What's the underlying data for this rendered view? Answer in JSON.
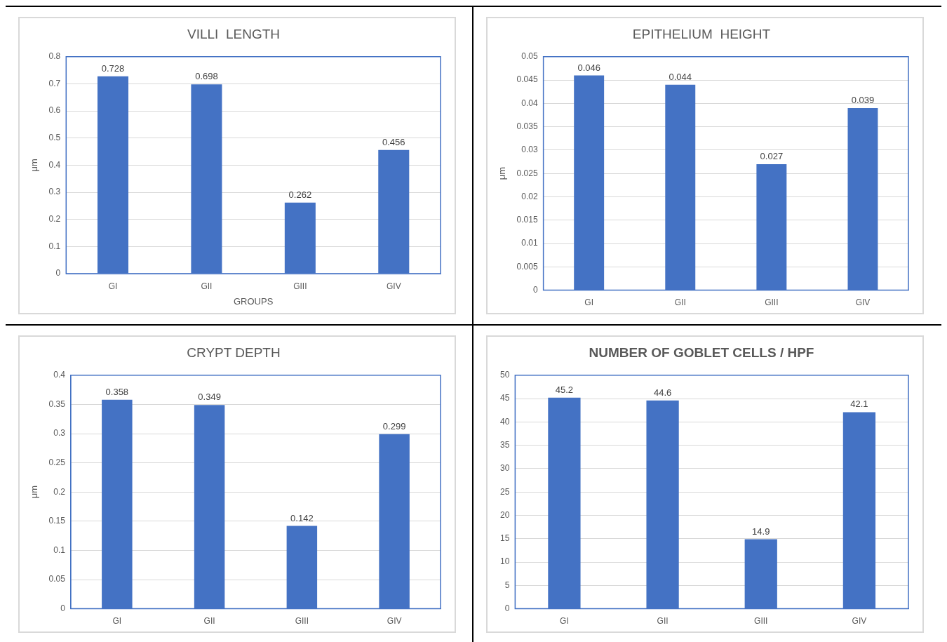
{
  "chart_data": [
    {
      "type": "bar",
      "title": "VILLI  LENGTH",
      "xlabel": "GROUPS",
      "ylabel": "μm",
      "categories": [
        "GI",
        "GII",
        "GIII",
        "GIV"
      ],
      "values": [
        0.728,
        0.698,
        0.262,
        0.456
      ],
      "color": "#4472c4",
      "ylim": [
        0,
        0.8
      ],
      "yticks": [
        0,
        0.1,
        0.2,
        0.3,
        0.4,
        0.5,
        0.6,
        0.7,
        0.8
      ],
      "grid": "y",
      "data_labels": true,
      "legend": false
    },
    {
      "type": "bar",
      "title": "EPITHELIUM  HEIGHT",
      "ylabel": "μm",
      "categories": [
        "GI",
        "GII",
        "GIII",
        "GIV"
      ],
      "values": [
        0.046,
        0.044,
        0.027,
        0.039
      ],
      "color": "#4472c4",
      "ylim": [
        0,
        0.05
      ],
      "yticks": [
        0,
        0.005,
        0.01,
        0.015,
        0.02,
        0.025,
        0.03,
        0.035,
        0.04,
        0.045,
        0.05
      ],
      "grid": "y",
      "data_labels": true,
      "legend": false
    },
    {
      "type": "bar",
      "title": "CRYPT DEPTH",
      "ylabel": "μm",
      "categories": [
        "GI",
        "GII",
        "GIII",
        "GIV"
      ],
      "values": [
        0.358,
        0.349,
        0.142,
        0.299
      ],
      "color": "#4472c4",
      "ylim": [
        0,
        0.4
      ],
      "yticks": [
        0,
        0.05,
        0.1,
        0.15,
        0.2,
        0.25,
        0.3,
        0.35,
        0.4
      ],
      "grid": "y",
      "data_labels": true,
      "legend": false
    },
    {
      "type": "bar",
      "title": "NUMBER OF GOBLET CELLS / HPF",
      "categories": [
        "GI",
        "GII",
        "GIII",
        "GIV"
      ],
      "values": [
        45.2,
        44.6,
        14.9,
        42.1
      ],
      "color": "#4472c4",
      "ylim": [
        0,
        50
      ],
      "yticks": [
        0,
        5,
        10,
        15,
        20,
        25,
        30,
        35,
        40,
        45,
        50
      ],
      "grid": "y",
      "data_labels": true,
      "legend": false
    }
  ]
}
